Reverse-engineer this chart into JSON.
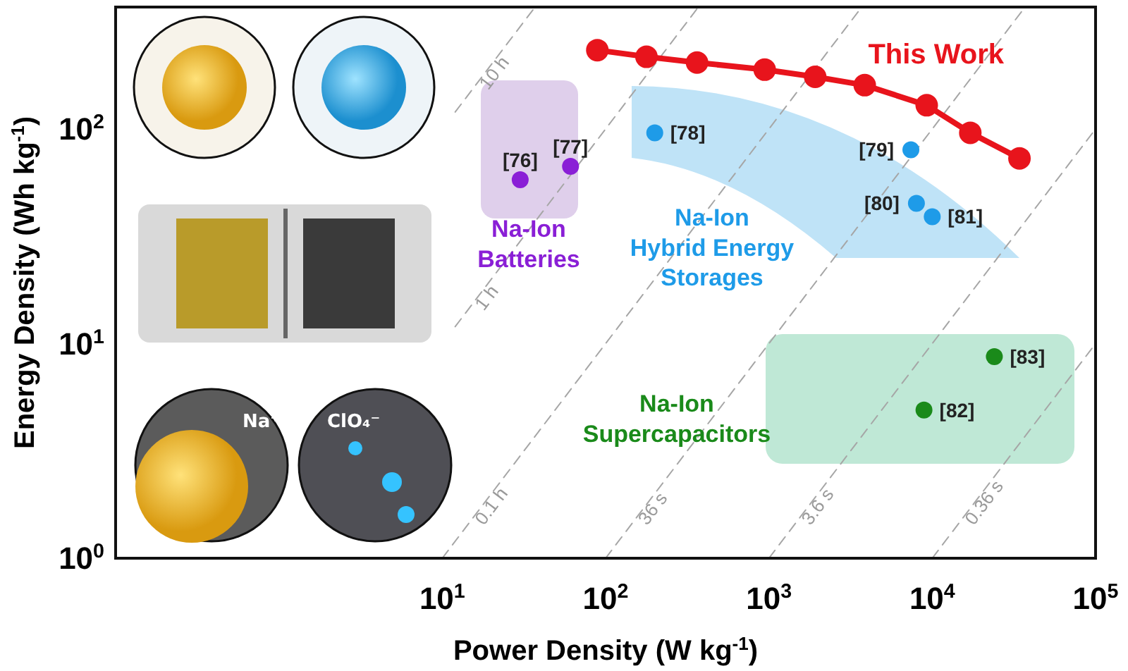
{
  "chart_data": {
    "type": "scatter",
    "xlabel": "Power Density (W kg$^{-1}$)",
    "ylabel": "Energy Density (Wh kg$^{-1}$)",
    "log": "xy",
    "xlim": [
      0.1,
      100000
    ],
    "ylim": [
      1,
      370
    ],
    "xticks": [
      {
        "value": 10,
        "label": "10$^{1}$"
      },
      {
        "value": 100,
        "label": "10$^{2}$"
      },
      {
        "value": 1000,
        "label": "10$^{3}$"
      },
      {
        "value": 10000,
        "label": "10$^{4}$"
      },
      {
        "value": 100000,
        "label": "10$^{5}$"
      }
    ],
    "yticks": [
      {
        "value": 1,
        "label": "10$^{0}$"
      },
      {
        "value": 10,
        "label": "10$^{1}$"
      },
      {
        "value": 100,
        "label": "10$^{2}$"
      }
    ],
    "series": [
      {
        "type": "line",
        "color": "#a6a6a6",
        "line_style": "dashed",
        "marker": "none",
        "x": [
          12,
          37
        ],
        "values": [
          120,
          370
        ]
      },
      {
        "type": "line",
        "color": "#a6a6a6",
        "line_style": "dashed",
        "marker": "none",
        "x": [
          12,
          370
        ],
        "values": [
          12,
          370
        ]
      },
      {
        "type": "line",
        "color": "#a6a6a6",
        "line_style": "dashed",
        "marker": "none",
        "x": [
          10,
          3700
        ],
        "values": [
          1,
          370
        ]
      },
      {
        "type": "line",
        "color": "#a6a6a6",
        "line_style": "dashed",
        "marker": "none",
        "x": [
          100,
          37000
        ],
        "values": [
          1,
          370
        ]
      },
      {
        "type": "line",
        "color": "#a6a6a6",
        "line_style": "dashed",
        "marker": "none",
        "x": [
          1000,
          100000
        ],
        "values": [
          1,
          100
        ]
      },
      {
        "type": "line",
        "color": "#a6a6a6",
        "line_style": "dashed",
        "marker": "none",
        "x": [
          10000,
          100000
        ],
        "values": [
          1,
          10
        ]
      },
      {
        "color": "#8a1fd6",
        "marker": "circle",
        "x": [
          30,
          61
        ],
        "values": [
          58,
          67
        ]
      },
      {
        "color": "#1e9be8",
        "marker": "circle",
        "x": [
          200,
          7400,
          8000,
          10000
        ],
        "values": [
          96,
          80,
          45,
          39
        ]
      },
      {
        "color": "#1a8a1a",
        "marker": "circle",
        "x": [
          8900,
          24000
        ],
        "values": [
          4.9,
          8.7
        ]
      },
      {
        "type": "line",
        "name": "This Work",
        "color": "#e8141c",
        "marker": "circle",
        "line_style": "solid",
        "x": [
          89,
          178,
          363,
          942,
          1920,
          3860,
          9250,
          17100,
          34200
        ],
        "values": [
          233,
          217,
          204,
          189,
          175,
          160,
          129,
          96,
          73
        ]
      }
    ],
    "annotations": [
      {
        "text": "10 h",
        "x": 16,
        "y": 160
      },
      {
        "text": "1 h",
        "x": 15,
        "y": 15
      },
      {
        "text": "0.1 h",
        "x": 15,
        "y": 1.5
      },
      {
        "text": "36 s",
        "x": 150,
        "y": 1.5
      },
      {
        "text": "3.6 s",
        "x": 1500,
        "y": 1.5
      },
      {
        "text": "0.36 s",
        "x": 15000,
        "y": 1.5
      },
      {
        "text": "[76]",
        "x": 30,
        "y": 58
      },
      {
        "text": "[77]",
        "x": 61,
        "y": 67
      },
      {
        "text": "[78]",
        "x": 200,
        "y": 96
      },
      {
        "text": "[79]",
        "x": 7400,
        "y": 80
      },
      {
        "text": "[80]",
        "x": 8000,
        "y": 45
      },
      {
        "text": "[81]",
        "x": 10000,
        "y": 39
      },
      {
        "text": "[82]",
        "x": 8900,
        "y": 4.9
      },
      {
        "text": "[83]",
        "x": 24000,
        "y": 8.7
      },
      "Na-Ion\nBatteries",
      "Na-Ion\nHybrid Energy\nStorages",
      "Na-Ion\nSupercapacitors",
      "Na⁺",
      "ClO₄⁻"
    ]
  }
}
